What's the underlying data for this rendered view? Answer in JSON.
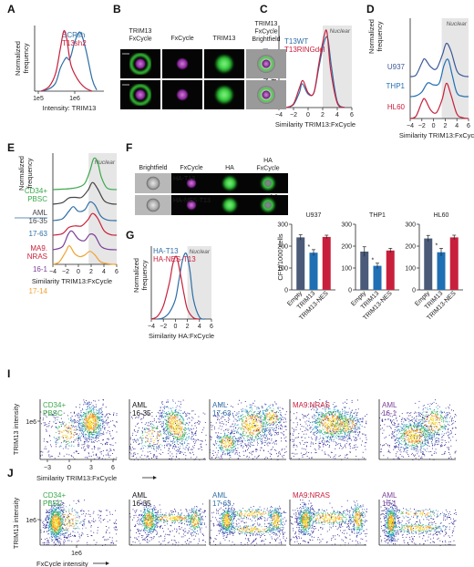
{
  "figure": {
    "panel_labels": [
      "A",
      "B",
      "C",
      "D",
      "E",
      "F",
      "G",
      "H",
      "I",
      "J"
    ],
    "nuclear_label": "Nuclear",
    "norm_freq_label": "Normalized frequency"
  },
  "panelB": {
    "headers": [
      "TRIM13 FxCycle",
      "FxCycle",
      "TRIM13",
      "TRIM13 FxCycle Brightfield"
    ]
  },
  "panelF": {
    "headers": [
      "Brightfield",
      "FxCycle",
      "HA",
      "HA FxCycle"
    ],
    "rows": [
      "HA-T13",
      "HA-NES-T13"
    ]
  },
  "chart_data": [
    {
      "panel": "A",
      "type": "line",
      "xlabel": "Intensity: TRIM13",
      "ylabel": "Normalized frequency",
      "x_scale": "log",
      "x_ticks": [
        "1e5",
        "1e6"
      ],
      "series": [
        {
          "name": "SCRsh",
          "color": "#2e6ea6",
          "x": [
            120000.0,
            200000.0,
            300000.0,
            400000.0,
            500000.0,
            600000.0,
            700000.0,
            800000.0,
            1000000.0,
            1400000.0,
            2000000.0,
            3000000.0,
            4000000.0
          ],
          "y": [
            0,
            0.04,
            0.14,
            0.38,
            0.5,
            0.56,
            0.52,
            0.6,
            0.82,
            0.98,
            0.7,
            0.2,
            0.02
          ]
        },
        {
          "name": "T13sh2",
          "color": "#c8203c",
          "x": [
            120000.0,
            200000.0,
            300000.0,
            400000.0,
            500000.0,
            600000.0,
            700000.0,
            800000.0,
            1000000.0,
            1400000.0,
            2000000.0,
            3000000.0
          ],
          "y": [
            0,
            0.08,
            0.3,
            0.7,
            1.0,
            0.88,
            0.6,
            0.42,
            0.28,
            0.14,
            0.05,
            0
          ]
        }
      ]
    },
    {
      "panel": "C",
      "type": "line",
      "xlabel": "Similarity TRIM13:FxCycle",
      "ylabel": "Normalized frequency",
      "xlim": [
        -4,
        6
      ],
      "x_ticks": [
        -4,
        -2,
        0,
        2,
        4,
        6
      ],
      "series": [
        {
          "name": "T13WT",
          "color": "#2e6ea6",
          "x": [
            -3,
            -2,
            -1.2,
            -0.8,
            0,
            0.8,
            1.5,
            2.2,
            2.7,
            3.2,
            4,
            5
          ],
          "y": [
            0,
            0.04,
            0.2,
            0.32,
            0.18,
            0.2,
            0.55,
            0.88,
            0.92,
            0.55,
            0.08,
            0
          ]
        },
        {
          "name": "T13RINGdel",
          "color": "#c8203c",
          "x": [
            -3,
            -2,
            -1.2,
            -0.7,
            0,
            0.8,
            1.5,
            2.2,
            2.6,
            3.1,
            4,
            5
          ],
          "y": [
            0,
            0.05,
            0.26,
            0.36,
            0.2,
            0.2,
            0.6,
            0.96,
            1.0,
            0.5,
            0.06,
            0
          ]
        }
      ]
    },
    {
      "panel": "D",
      "type": "line",
      "xlabel": "Similarity TRIM13:FxCycle",
      "ylabel": "Normalized frequency",
      "xlim": [
        -4,
        6
      ],
      "x_ticks": [
        -4,
        -2,
        0,
        2,
        4,
        6
      ],
      "series": [
        {
          "name": "U937",
          "color": "#3b5998",
          "x": [
            -4,
            -3,
            -2,
            -1.5,
            -0.5,
            0.5,
            1.5,
            2.2,
            3,
            4,
            5,
            6
          ],
          "y": [
            0,
            0.04,
            0.35,
            0.45,
            0.25,
            0.2,
            0.55,
            0.85,
            0.65,
            0.15,
            0.02,
            0
          ]
        },
        {
          "name": "THP1",
          "color": "#1f6fb4",
          "x": [
            -4,
            -3,
            -2,
            -1,
            0,
            1,
            1.8,
            2.5,
            3.2,
            4,
            5,
            6
          ],
          "y": [
            0,
            0.02,
            0.12,
            0.35,
            0.3,
            0.35,
            0.8,
            0.95,
            0.55,
            0.1,
            0.01,
            0
          ]
        },
        {
          "name": "HL60",
          "color": "#c8203c",
          "x": [
            -4,
            -3,
            -2,
            -1.5,
            -0.5,
            0.5,
            1.5,
            2.2,
            3,
            4,
            5,
            6
          ],
          "y": [
            0,
            0.06,
            0.42,
            0.5,
            0.22,
            0.15,
            0.5,
            0.9,
            0.6,
            0.12,
            0.02,
            0
          ]
        }
      ]
    },
    {
      "panel": "E",
      "type": "line",
      "xlabel": "Similarity TRIM13:FxCycle",
      "ylabel": "Normalized frequency",
      "xlim": [
        -4,
        6
      ],
      "x_ticks": [
        -4,
        -2,
        0,
        2,
        4,
        6
      ],
      "series": [
        {
          "name": "CD34+ PBSC",
          "color": "#3aa84a",
          "x": [
            -4,
            -2,
            -1,
            0,
            1,
            1.8,
            2.4,
            3,
            3.6,
            4.5,
            6
          ],
          "y": [
            0,
            0.02,
            0.04,
            0.08,
            0.2,
            0.6,
            1.0,
            0.9,
            0.4,
            0.05,
            0
          ]
        },
        {
          "name": "AML 16-35",
          "color": "#444444",
          "x": [
            -4,
            -2.5,
            -1.5,
            -0.5,
            0.5,
            1.5,
            2.2,
            3,
            4,
            5,
            6
          ],
          "y": [
            0,
            0.05,
            0.2,
            0.22,
            0.22,
            0.45,
            0.7,
            0.5,
            0.12,
            0.02,
            0
          ]
        },
        {
          "name": "17-63",
          "color": "#2e6ea6",
          "x": [
            -4,
            -2.5,
            -1.5,
            -0.8,
            0,
            1,
            1.8,
            2.6,
            3.5,
            4.5,
            6
          ],
          "y": [
            0,
            0.06,
            0.3,
            0.45,
            0.3,
            0.35,
            0.6,
            0.5,
            0.15,
            0.02,
            0
          ]
        },
        {
          "name": "MA9. NRAS",
          "color": "#c8203c",
          "x": [
            -4,
            -2.5,
            -1.5,
            -0.5,
            0.5,
            1.5,
            2.2,
            3,
            4,
            5,
            6
          ],
          "y": [
            0,
            0.05,
            0.25,
            0.3,
            0.3,
            0.5,
            0.7,
            0.55,
            0.15,
            0.02,
            0
          ]
        },
        {
          "name": "16-1",
          "color": "#7b3f98",
          "x": [
            -4,
            -2.5,
            -1.6,
            -1,
            0,
            1,
            1.8,
            2.6,
            3.5,
            4.5,
            6
          ],
          "y": [
            0,
            0.1,
            0.5,
            0.6,
            0.35,
            0.3,
            0.5,
            0.45,
            0.12,
            0.02,
            0
          ]
        },
        {
          "name": "17-14",
          "color": "#f2a22f",
          "x": [
            -4,
            -3,
            -2,
            -1.4,
            -0.6,
            0.2,
            1,
            1.8,
            2.6,
            3.5,
            5,
            6
          ],
          "y": [
            0,
            0.08,
            0.4,
            0.6,
            0.35,
            0.25,
            0.3,
            0.42,
            0.3,
            0.08,
            0.01,
            0
          ]
        }
      ]
    },
    {
      "panel": "G",
      "type": "line",
      "xlabel": "Similarity  HA:FxCycle",
      "ylabel": "Normalized frequency",
      "xlim": [
        -4,
        6
      ],
      "x_ticks": [
        -4,
        -2,
        0,
        2,
        4,
        6
      ],
      "series": [
        {
          "name": "HA-T13",
          "color": "#2e6ea6",
          "x": [
            -3,
            -2,
            -1,
            0,
            0.6,
            1.2,
            1.8,
            2.4,
            3,
            4,
            5
          ],
          "y": [
            0,
            0.02,
            0.1,
            0.3,
            0.6,
            0.9,
            1.0,
            0.75,
            0.3,
            0.03,
            0
          ]
        },
        {
          "name": "HA-NES-T13",
          "color": "#c8203c",
          "x": [
            -4,
            -3,
            -2,
            -1,
            -0.4,
            0.2,
            0.8,
            1.4,
            2,
            3,
            4
          ],
          "y": [
            0,
            0.04,
            0.2,
            0.55,
            0.85,
            0.95,
            0.7,
            0.4,
            0.15,
            0.02,
            0
          ]
        }
      ]
    },
    {
      "panel": "H",
      "type": "bar",
      "ylabel": "CFU/1000 cells",
      "ylim": [
        0,
        300
      ],
      "y_ticks": [
        0,
        100,
        200,
        300
      ],
      "categories": [
        "Empty",
        "TRIM13",
        "TRIM13-NES"
      ],
      "colors": [
        "#4a5a78",
        "#1f6fb4",
        "#c8203c"
      ],
      "groups": [
        {
          "name": "U937",
          "values": [
            240,
            170,
            242
          ],
          "errors": [
            12,
            14,
            8
          ],
          "star": [
            false,
            true,
            false
          ]
        },
        {
          "name": "THP1",
          "values": [
            175,
            110,
            180
          ],
          "errors": [
            22,
            12,
            10
          ],
          "star": [
            false,
            true,
            false
          ]
        },
        {
          "name": "HL60",
          "values": [
            235,
            172,
            240
          ],
          "errors": [
            14,
            18,
            10
          ],
          "star": [
            false,
            true,
            false
          ]
        }
      ]
    },
    {
      "panel": "I",
      "type": "scatter",
      "xlabel": "Similarity TRIM13:FxCycle",
      "ylabel": "TRIM13 intensity",
      "x_ticks": [
        -3,
        0,
        3,
        6
      ],
      "y_ticks": [
        "1e6"
      ],
      "plots": [
        {
          "label_lines": [
            "CD34+",
            "PBSC"
          ],
          "color": "#3aa84a"
        },
        {
          "label_lines": [
            "AML",
            "16-35"
          ],
          "color": "#111111"
        },
        {
          "label_lines": [
            "AML",
            "17-63"
          ],
          "color": "#2e6ea6"
        },
        {
          "label_lines": [
            "MA9:NRAS"
          ],
          "color": "#c8203c"
        },
        {
          "label_lines": [
            "AML",
            "16-1"
          ],
          "color": "#7b3f98"
        }
      ]
    },
    {
      "panel": "J",
      "type": "scatter",
      "xlabel": "FxCycle intensity",
      "ylabel": "TRIM13 intensity",
      "x_ticks": [
        "1e6"
      ],
      "y_ticks": [
        "1e6"
      ],
      "plots": [
        {
          "label_lines": [
            "CD34+",
            "PBSC"
          ],
          "color": "#3aa84a"
        },
        {
          "label_lines": [
            "AML",
            "16-35"
          ],
          "color": "#111111"
        },
        {
          "label_lines": [
            "AML",
            "17-63"
          ],
          "color": "#2e6ea6"
        },
        {
          "label_lines": [
            "MA9:NRAS"
          ],
          "color": "#c8203c"
        },
        {
          "label_lines": [
            "AML",
            "16-1"
          ],
          "color": "#7b3f98"
        }
      ]
    }
  ]
}
